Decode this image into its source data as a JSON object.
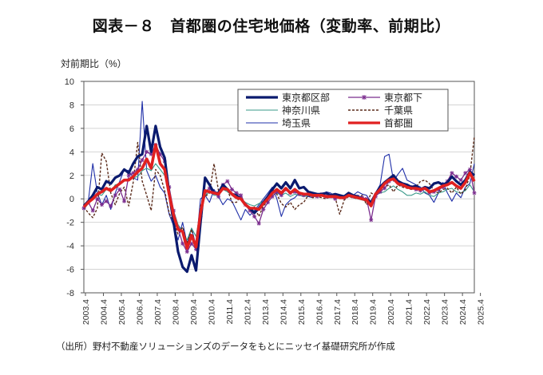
{
  "title": "図表－８　首都圏の住宅地価格（変動率、前期比）",
  "source_note": "（出所）野村不動産ソリューションズのデータをもとにニッセイ基礎研究所が作成",
  "chart_data": {
    "type": "line",
    "title": "図表－８　首都圏の住宅地価格（変動率、前期比）",
    "ylabel": "対前期比（%）",
    "xlabel": "",
    "ylim": [
      -8,
      10
    ],
    "yticks": [
      10,
      8,
      6,
      4,
      2,
      0,
      -2,
      -4,
      -6,
      -8
    ],
    "grid": true,
    "legend_position": "top-right",
    "x_start": "2003.4",
    "x_step": "quarter",
    "xtick_labels": [
      "2003.4",
      "2004.4",
      "2005.4",
      "2006.4",
      "2007.4",
      "2008.4",
      "2009.4",
      "2010.4",
      "2011.4",
      "2012.4",
      "2013.4",
      "2014.4",
      "2015.4",
      "2016.4",
      "2017.4",
      "2018.4",
      "2019.4",
      "2020.4",
      "2021.4",
      "2022.4",
      "2023.4",
      "2024.4",
      "2025.4"
    ],
    "series": [
      {
        "name": "東京都区部",
        "color": "#0a1a6e",
        "style": "thick",
        "values": [
          -0.6,
          -0.2,
          0.3,
          1.0,
          0.8,
          1.5,
          1.3,
          1.8,
          2.0,
          2.5,
          2.2,
          3.0,
          3.6,
          3.8,
          6.2,
          4.0,
          6.2,
          4.4,
          3.5,
          0.5,
          -2.0,
          -4.5,
          -5.8,
          -6.2,
          -4.8,
          -6.1,
          -2.0,
          1.8,
          1.2,
          0.5,
          0.5,
          1.2,
          0.8,
          0.4,
          0.3,
          0.0,
          -0.5,
          -0.8,
          -1.2,
          -0.8,
          -0.3,
          0.2,
          0.8,
          1.3,
          0.9,
          1.4,
          0.9,
          1.6,
          0.9,
          1.0,
          0.6,
          0.5,
          0.4,
          0.4,
          0.5,
          0.3,
          0.4,
          0.3,
          0.2,
          0.5,
          0.3,
          0.2,
          0.0,
          -0.1,
          -0.3,
          0.4,
          1.0,
          1.4,
          1.7,
          2.0,
          1.5,
          1.3,
          1.2,
          1.0,
          1.1,
          0.8,
          1.0,
          0.9,
          1.3,
          1.4,
          1.2,
          1.4,
          1.9,
          1.5,
          1.2,
          1.6,
          2.3,
          2.0
        ]
      },
      {
        "name": "東京都下",
        "color": "#7b2d8e",
        "style": "star",
        "values": [
          -0.8,
          -0.3,
          -1.0,
          0.0,
          -0.5,
          -0.2,
          -0.6,
          0.3,
          0.8,
          -0.2,
          2.0,
          2.2,
          2.5,
          3.3,
          4.0,
          3.8,
          4.6,
          3.8,
          3.2,
          1.0,
          -1.0,
          -2.5,
          -3.8,
          -4.5,
          -3.8,
          -4.3,
          -1.5,
          0.6,
          0.9,
          0.5,
          0.2,
          1.2,
          1.5,
          0.8,
          0.5,
          0.3,
          -0.5,
          -1.0,
          -1.5,
          -2.1,
          -0.9,
          -0.3,
          0.2,
          0.6,
          0.3,
          0.8,
          0.5,
          0.6,
          0.4,
          0.3,
          0.5,
          0.3,
          0.2,
          0.4,
          0.2,
          0.2,
          0.0,
          0.2,
          0.1,
          0.3,
          0.2,
          0.2,
          0.1,
          0.0,
          -1.8,
          0.2,
          0.6,
          0.9,
          1.5,
          1.7,
          1.4,
          1.2,
          1.1,
          1.0,
          0.8,
          0.7,
          0.9,
          0.5,
          0.6,
          0.8,
          1.0,
          1.5,
          2.2,
          1.9,
          1.6,
          2.2,
          2.5,
          0.5
        ]
      },
      {
        "name": "神奈川県",
        "color": "#3a9a8a",
        "style": "thin",
        "values": [
          -0.9,
          -0.4,
          0.1,
          0.4,
          0.3,
          0.8,
          0.6,
          1.2,
          1.3,
          1.5,
          1.7,
          1.8,
          1.9,
          2.4,
          2.6,
          2.4,
          3.0,
          2.5,
          2.0,
          0.6,
          -1.0,
          -2.2,
          -2.8,
          -3.5,
          -2.5,
          -3.2,
          -1.0,
          0.3,
          0.6,
          0.3,
          0.3,
          0.8,
          0.6,
          0.3,
          0.1,
          0.0,
          -0.3,
          -0.5,
          -0.6,
          -0.4,
          -0.2,
          0.1,
          0.3,
          0.5,
          0.3,
          0.5,
          0.2,
          0.4,
          0.3,
          0.2,
          0.3,
          0.2,
          0.2,
          0.3,
          0.1,
          0.2,
          0.1,
          0.1,
          0.0,
          0.2,
          0.1,
          0.0,
          -0.1,
          -0.2,
          -0.6,
          0.3,
          0.5,
          0.6,
          0.9,
          1.1,
          0.8,
          0.6,
          0.3,
          0.3,
          0.5,
          0.4,
          0.6,
          0.3,
          0.2,
          0.5,
          0.6,
          0.8,
          0.9,
          0.6,
          0.5,
          0.7,
          1.2,
          0.6
        ]
      },
      {
        "name": "千葉県",
        "color": "#5a2a1a",
        "style": "dashed",
        "values": [
          -0.7,
          -1.2,
          -1.6,
          -0.8,
          3.9,
          3.2,
          0.5,
          -0.5,
          0.5,
          1.0,
          -0.6,
          1.4,
          4.8,
          1.5,
          0.3,
          -1.0,
          2.5,
          2.0,
          0.7,
          -1.2,
          -2.0,
          -3.0,
          -2.4,
          -3.8,
          -2.6,
          -4.2,
          -0.6,
          0.2,
          0.5,
          3.0,
          0.7,
          0.8,
          0.8,
          -0.3,
          -0.3,
          0.3,
          -0.5,
          -1.0,
          -0.7,
          -1.5,
          -0.6,
          -0.2,
          0.8,
          0.4,
          -0.4,
          -0.7,
          -0.3,
          -0.9,
          -0.5,
          -0.3,
          0.3,
          0.1,
          0.2,
          0.1,
          0.0,
          0.2,
          0.1,
          -1.3,
          -0.1,
          0.2,
          0.1,
          0.0,
          0.3,
          -0.5,
          0.5,
          0.3,
          0.6,
          1.0,
          1.2,
          0.6,
          1.2,
          1.0,
          0.9,
          0.8,
          1.0,
          1.5,
          1.6,
          1.3,
          0.7,
          0.5,
          0.8,
          0.9,
          0.5,
          1.0,
          0.4,
          0.8,
          2.0,
          5.3
        ]
      },
      {
        "name": "埼玉県",
        "color": "#1f2fa8",
        "style": "thin",
        "values": [
          -0.5,
          -0.2,
          3.0,
          0.5,
          -0.5,
          0.3,
          -0.9,
          0.5,
          1.5,
          2.5,
          2.4,
          1.8,
          1.6,
          8.3,
          2.4,
          1.5,
          2.0,
          1.0,
          0.5,
          -1.3,
          -2.3,
          -3.5,
          -2.0,
          -3.8,
          -2.5,
          -4.0,
          0.0,
          0.3,
          -0.3,
          0.8,
          0.2,
          -0.5,
          0.0,
          -0.2,
          -1.0,
          -1.8,
          -0.9,
          -1.4,
          -1.0,
          -0.5,
          0.0,
          0.5,
          1.0,
          0.0,
          -1.5,
          -0.5,
          -0.1,
          0.1,
          0.5,
          0.3,
          0.2,
          0.1,
          0.4,
          0.3,
          0.6,
          0.5,
          0.2,
          0.2,
          0.3,
          0.5,
          0.3,
          0.6,
          0.4,
          0.3,
          -0.3,
          0.5,
          1.2,
          3.6,
          3.8,
          1.5,
          2.1,
          2.6,
          1.6,
          1.4,
          1.2,
          1.0,
          0.5,
          0.3,
          -0.3,
          0.5,
          1.4,
          0.5,
          -0.2,
          0.5,
          0.1,
          1.0,
          1.3,
          3.0
        ]
      },
      {
        "name": "首都圏",
        "color": "#e02020",
        "style": "thickest",
        "values": [
          -0.7,
          -0.3,
          0.0,
          0.4,
          0.6,
          0.9,
          0.7,
          1.0,
          1.3,
          1.6,
          1.6,
          1.9,
          2.3,
          2.6,
          3.4,
          2.6,
          4.6,
          3.0,
          2.5,
          0.4,
          -1.4,
          -2.6,
          -2.8,
          -4.2,
          -3.1,
          -4.1,
          -1.2,
          0.7,
          0.6,
          0.5,
          0.4,
          0.9,
          0.8,
          0.4,
          0.1,
          0.0,
          -0.5,
          -0.8,
          -0.8,
          -0.9,
          -0.4,
          0.0,
          0.5,
          0.8,
          0.5,
          0.9,
          0.5,
          0.8,
          0.5,
          0.4,
          0.4,
          0.3,
          0.3,
          0.3,
          0.2,
          0.2,
          0.2,
          0.1,
          0.1,
          0.3,
          0.2,
          0.1,
          0.0,
          -0.1,
          -0.6,
          0.4,
          0.8,
          1.3,
          1.6,
          1.7,
          1.3,
          1.2,
          1.0,
          0.9,
          0.9,
          0.8,
          0.9,
          0.6,
          0.7,
          0.9,
          1.1,
          1.2,
          1.4,
          1.1,
          0.9,
          1.4,
          2.2,
          1.5
        ]
      }
    ]
  }
}
